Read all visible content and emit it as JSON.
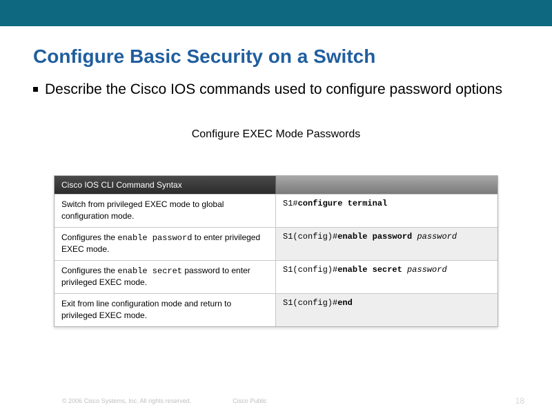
{
  "colors": {
    "topbar": "#0d6880",
    "title": "#205e9e",
    "row_alt_bg": "#eeeeee"
  },
  "title": "Configure Basic Security on a Switch",
  "bullet": "Describe the Cisco IOS commands used to configure password options",
  "subheading": "Configure EXEC Mode Passwords",
  "table": {
    "header_left": "Cisco IOS CLI Command Syntax",
    "header_right": "",
    "rows": [
      {
        "desc_pre": "Switch from privileged EXEC mode to global configuration mode.",
        "desc_mono": "",
        "desc_post": "",
        "prompt": "S1#",
        "cmd_bold": "configure terminal",
        "cmd_ital": "",
        "alt": false
      },
      {
        "desc_pre": "Configures the ",
        "desc_mono": "enable password",
        "desc_post": " to enter privileged EXEC mode.",
        "prompt": "S1(config)#",
        "cmd_bold": "enable password",
        "cmd_ital": "password",
        "alt": true
      },
      {
        "desc_pre": "Configures the ",
        "desc_mono": "enable secret",
        "desc_post": " password to enter privileged EXEC mode.",
        "prompt": "S1(config)#",
        "cmd_bold": "enable secret",
        "cmd_ital": "password",
        "alt": false
      },
      {
        "desc_pre": "Exit from line configuration mode and return to privileged EXEC mode.",
        "desc_mono": "",
        "desc_post": "",
        "prompt": "S1(config)#",
        "cmd_bold": "end",
        "cmd_ital": "",
        "alt": true
      }
    ]
  },
  "footer": {
    "copyright": "© 2006 Cisco Systems, Inc. All rights reserved.",
    "label": "Cisco Public",
    "page": "18"
  }
}
